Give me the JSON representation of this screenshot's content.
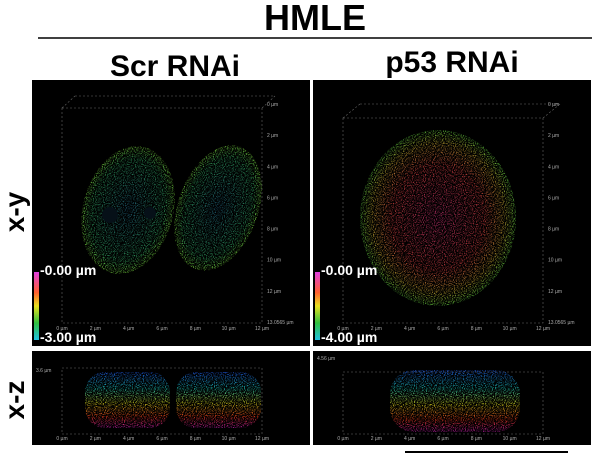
{
  "title": "HMLE",
  "columns": [
    "Scr RNAi",
    "p53 RNAi"
  ],
  "rows": [
    "x-y",
    "x-z"
  ],
  "panels": [
    {
      "depth_top": "-0.00 µm",
      "depth_bottom": "-3.00 µm",
      "x_ticks": [
        "0 µm",
        "2 µm",
        "4 µm",
        "6 µm",
        "8 µm",
        "10 µm",
        "12 µm"
      ],
      "y_ticks": [
        "0 µm",
        "2 µm",
        "4 µm",
        "6 µm",
        "8 µm",
        "10 µm",
        "12 µm",
        "13.0565 µm"
      ],
      "xz_height": "3.6 µm"
    },
    {
      "depth_top": "-0.00 µm",
      "depth_bottom": "-4.00 µm",
      "x_ticks": [
        "0 µm",
        "2 µm",
        "4 µm",
        "6 µm",
        "8 µm",
        "10 µm",
        "12 µm"
      ],
      "y_ticks": [
        "0 µm",
        "2 µm",
        "4 µm",
        "6 µm",
        "8 µm",
        "10 µm",
        "12 µm",
        "13.0565 µm"
      ],
      "xz_height": "4.56 µm"
    }
  ]
}
